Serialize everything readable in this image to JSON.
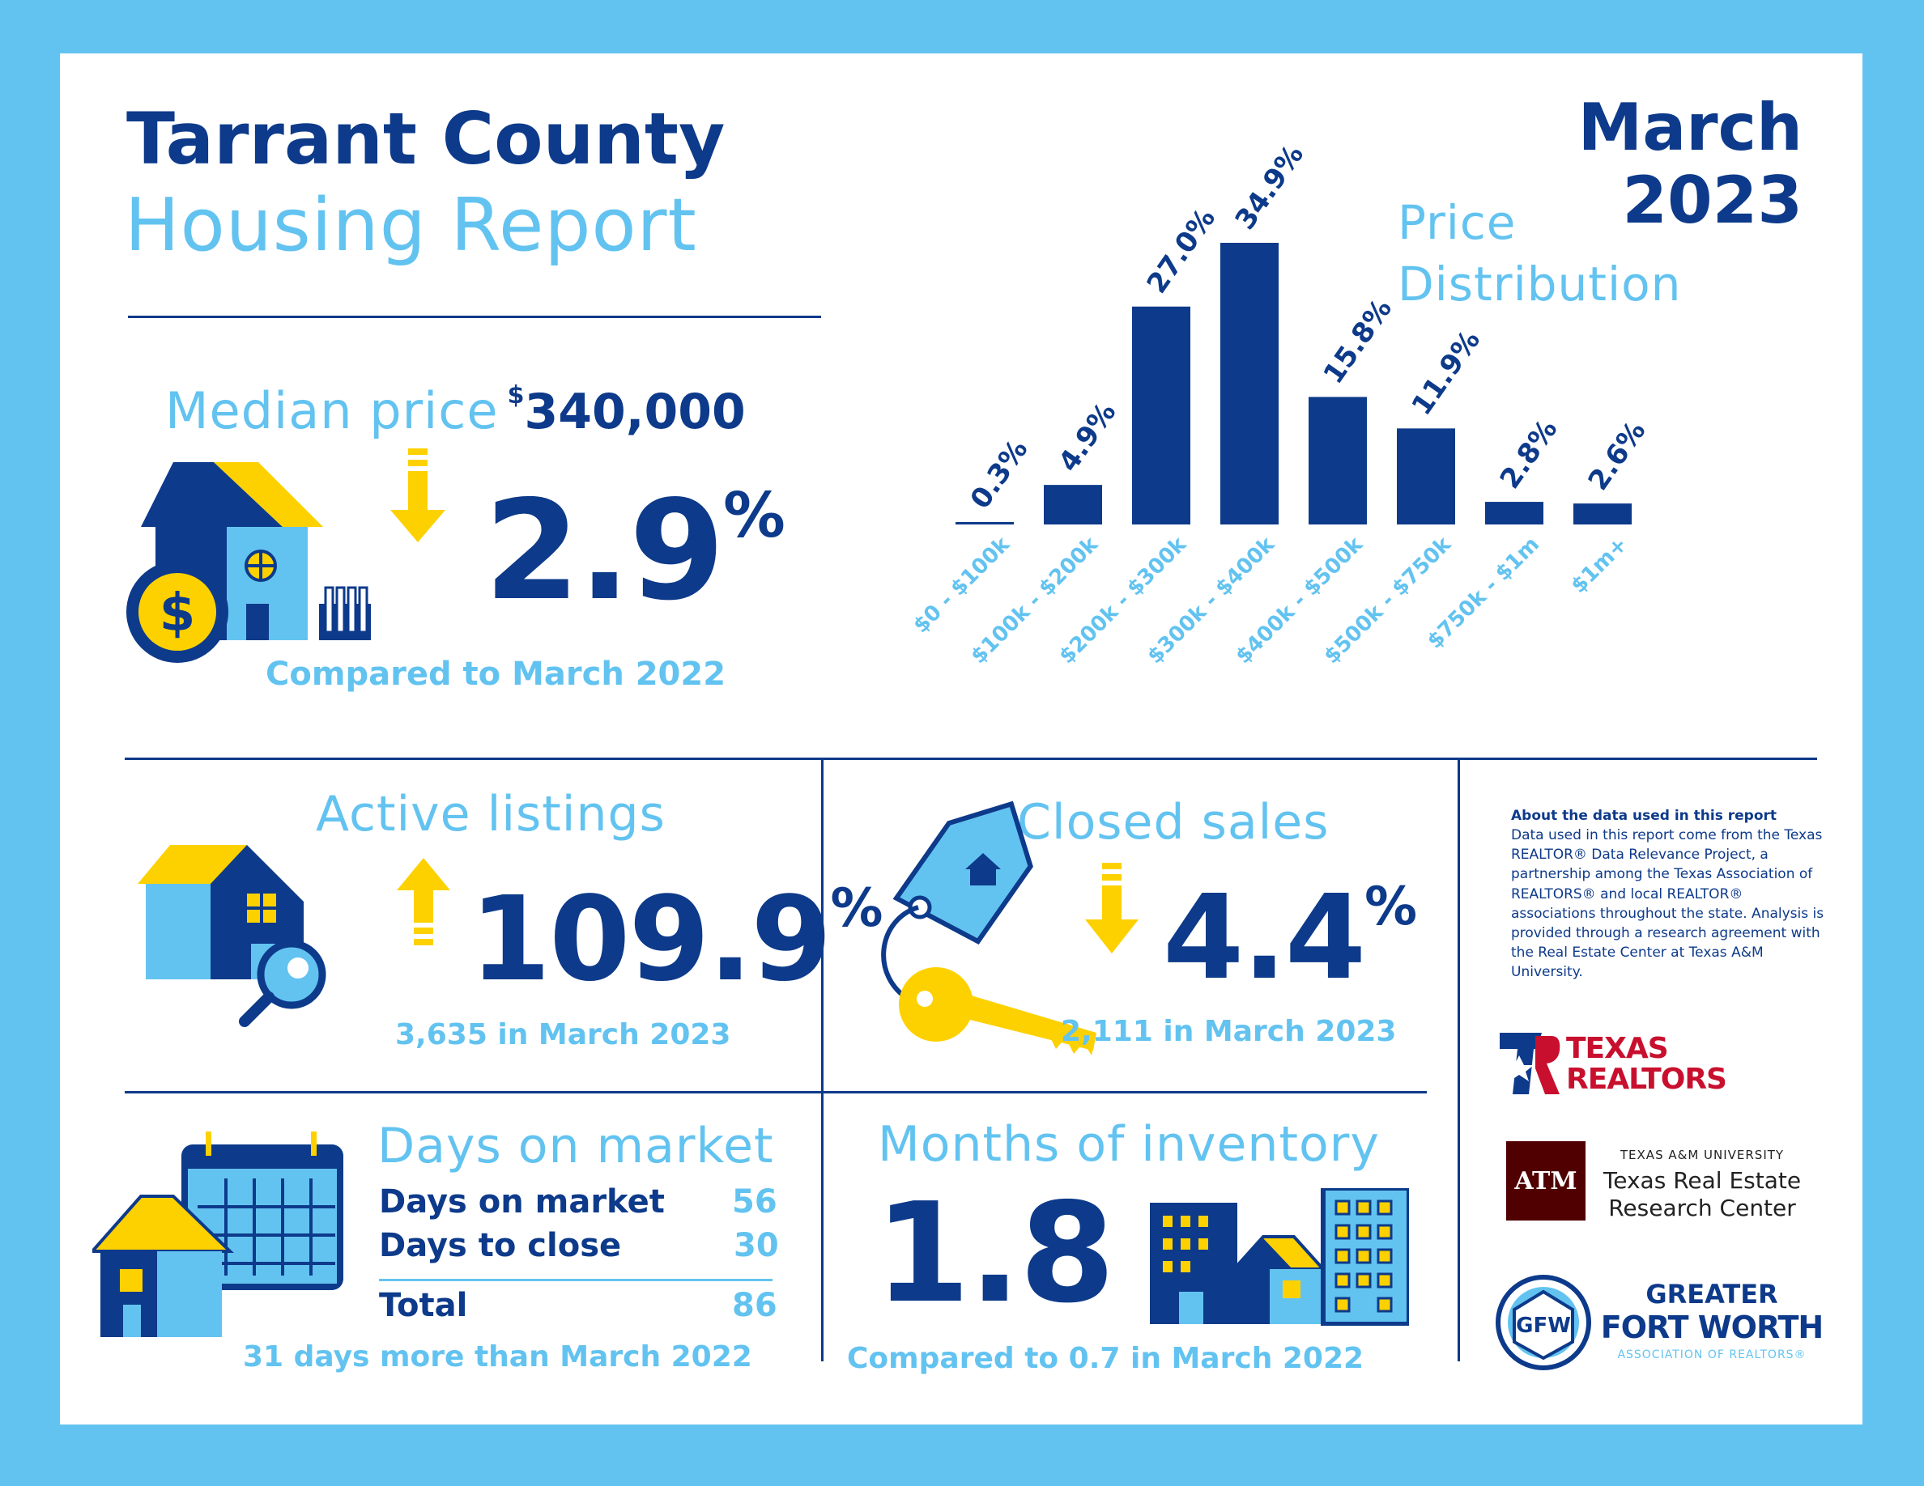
{
  "header": {
    "title_line1": "Tarrant County",
    "title_line2": "Housing Report",
    "month": "March",
    "year": "2023"
  },
  "median_price": {
    "label": "Median price",
    "currency_symbol": "$",
    "value": "340,000",
    "change": "2.9",
    "pct_sign": "%",
    "direction": "down",
    "caption": "Compared to March 2022"
  },
  "chart_data": {
    "type": "bar",
    "title": "Price Distribution",
    "title_line1": "Price",
    "title_line2": "Distribution",
    "categories": [
      "$0 - $100k",
      "$100k - $200k",
      "$200k - $300k",
      "$300k - $400k",
      "$400k - $500k",
      "$500k - $750k",
      "$750k - $1m",
      "$1m+"
    ],
    "values": [
      0.3,
      4.9,
      27.0,
      34.9,
      15.8,
      11.9,
      2.8,
      2.6
    ],
    "value_labels": [
      "0.3%",
      "4.9%",
      "27.0%",
      "34.9%",
      "15.8%",
      "11.9%",
      "2.8%",
      "2.6%"
    ],
    "ylim": [
      0,
      34.9
    ],
    "grid": false,
    "bar_color": "#0d3a8a"
  },
  "active_listings": {
    "label": "Active listings",
    "change": "109.9",
    "pct_sign": "%",
    "direction": "up",
    "caption": "3,635 in March 2023"
  },
  "closed_sales": {
    "label": "Closed sales",
    "change": "4.4",
    "pct_sign": "%",
    "direction": "down",
    "caption": "2,111 in March 2023"
  },
  "days_on_market": {
    "label": "Days on market",
    "rows": [
      {
        "label": "Days on market",
        "value": "56"
      },
      {
        "label": "Days to close",
        "value": "30"
      }
    ],
    "total_label": "Total",
    "total_value": "86",
    "caption": "31 days more than March 2022"
  },
  "months_inventory": {
    "label": "Months of inventory",
    "value": "1.8",
    "caption": "Compared to 0.7 in March 2022"
  },
  "about": {
    "heading": "About the data used in this report",
    "body": "Data used in this report come from the Texas REALTOR® Data Relevance Project, a partnership among the Texas Association of REALTORS® and local REALTOR® associations throughout the state. Analysis is provided through a research agreement with the Real Estate Center at Texas A&M University."
  },
  "logos": {
    "texas_realtors_line1": "TEXAS",
    "texas_realtors_line2": "REALTORS",
    "tamu_line1": "TEXAS A&M UNIVERSITY",
    "tamu_line2": "Texas Real Estate",
    "tamu_line3": "Research Center",
    "tamu_mark": "ATM",
    "gfw_line1": "GREATER",
    "gfw_line2": "FORT WORTH",
    "gfw_line3": "ASSOCIATION OF REALTORS®",
    "gfw_mark": "GFW"
  },
  "colors": {
    "navy": "#0d3a8a",
    "light_blue": "#63c3f0",
    "yellow": "#fdd100",
    "maroon": "#500000",
    "red": "#c8102e"
  }
}
